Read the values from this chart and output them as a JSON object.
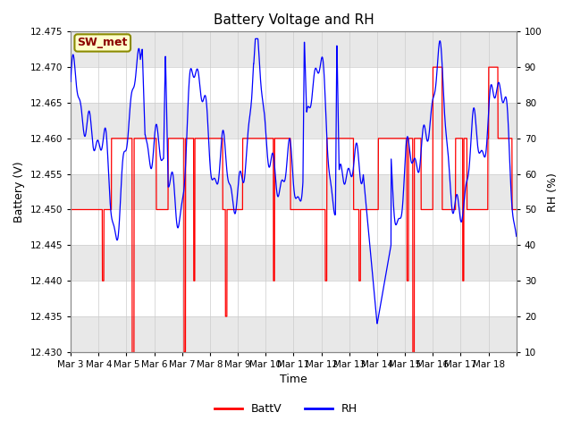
{
  "title": "Battery Voltage and RH",
  "xlabel": "Time",
  "ylabel_left": "Battery (V)",
  "ylabel_right": "RH (%)",
  "annotation": "SW_met",
  "ylim_left": [
    12.43,
    12.475
  ],
  "ylim_right": [
    10,
    100
  ],
  "yticks_left": [
    12.43,
    12.435,
    12.44,
    12.445,
    12.45,
    12.455,
    12.46,
    12.465,
    12.47,
    12.475
  ],
  "yticks_right": [
    10,
    20,
    30,
    40,
    50,
    60,
    70,
    80,
    90,
    100
  ],
  "date_labels": [
    "Mar 3",
    "Mar 4",
    "Mar 5",
    "Mar 6",
    "Mar 7",
    "Mar 8",
    "Mar 9",
    "Mar 10",
    "Mar 11",
    "Mar 12",
    "Mar 13",
    "Mar 14",
    "Mar 15",
    "Mar 16",
    "Mar 17",
    "Mar 18"
  ],
  "batt_color": "#FF0000",
  "rh_color": "#0000FF",
  "bg_color": "#FFFFFF",
  "grid_band_color": "#E8E8E8",
  "legend_batt": "BattV",
  "legend_rh": "RH",
  "title_fontsize": 11,
  "tick_fontsize": 7.5,
  "label_fontsize": 9,
  "n_days": 16,
  "n_pts_per_day": 144,
  "batt_seed": 7,
  "rh_seed": 3
}
